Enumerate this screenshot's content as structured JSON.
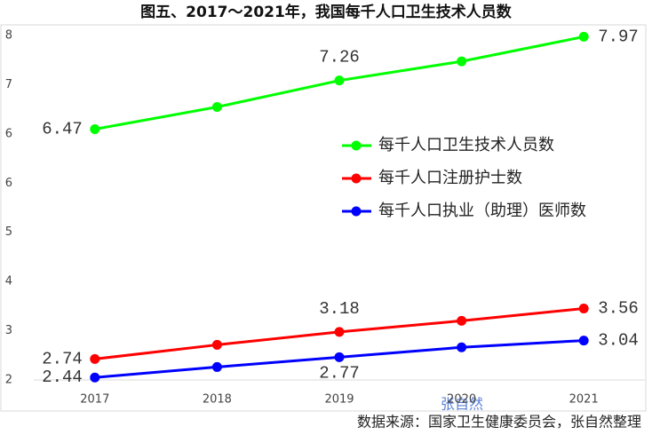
{
  "chart_data": {
    "type": "line",
    "title": "图五、2017～2021年，我国每千人口卫生技术人员数",
    "categories": [
      "2017",
      "2018",
      "2019",
      "2020",
      "2021"
    ],
    "series": [
      {
        "name": "每千人口卫生技术人员数",
        "color": "#00ff00",
        "values": [
          6.47,
          6.83,
          7.26,
          7.57,
          7.97
        ],
        "value_labels": [
          "6.47",
          null,
          "7.26",
          null,
          "7.97"
        ]
      },
      {
        "name": "每千人口注册护士数",
        "color": "#ff0000",
        "values": [
          2.74,
          2.97,
          3.18,
          3.36,
          3.56
        ],
        "value_labels": [
          "2.74",
          null,
          "3.18",
          null,
          "3.56"
        ]
      },
      {
        "name": "每千人口执业（助理）医师数",
        "color": "#0000ff",
        "values": [
          2.44,
          2.61,
          2.77,
          2.93,
          3.04
        ],
        "value_labels": [
          "2.44",
          null,
          "2.77",
          null,
          "3.04"
        ]
      }
    ],
    "ylim": [
      2.4,
      7.99
    ],
    "yticks": [
      {
        "value": 2.4,
        "label": "2"
      },
      {
        "value": 3.2,
        "label": "3"
      },
      {
        "value": 4.0,
        "label": "4"
      },
      {
        "value": 4.8,
        "label": "5"
      },
      {
        "value": 5.59,
        "label": "6"
      },
      {
        "value": 6.39,
        "label": "6"
      },
      {
        "value": 7.19,
        "label": "7"
      },
      {
        "value": 7.99,
        "label": "8"
      }
    ],
    "watermark": "张自然",
    "source": "数据来源：国家卫生健康委员会，张自然整理"
  }
}
